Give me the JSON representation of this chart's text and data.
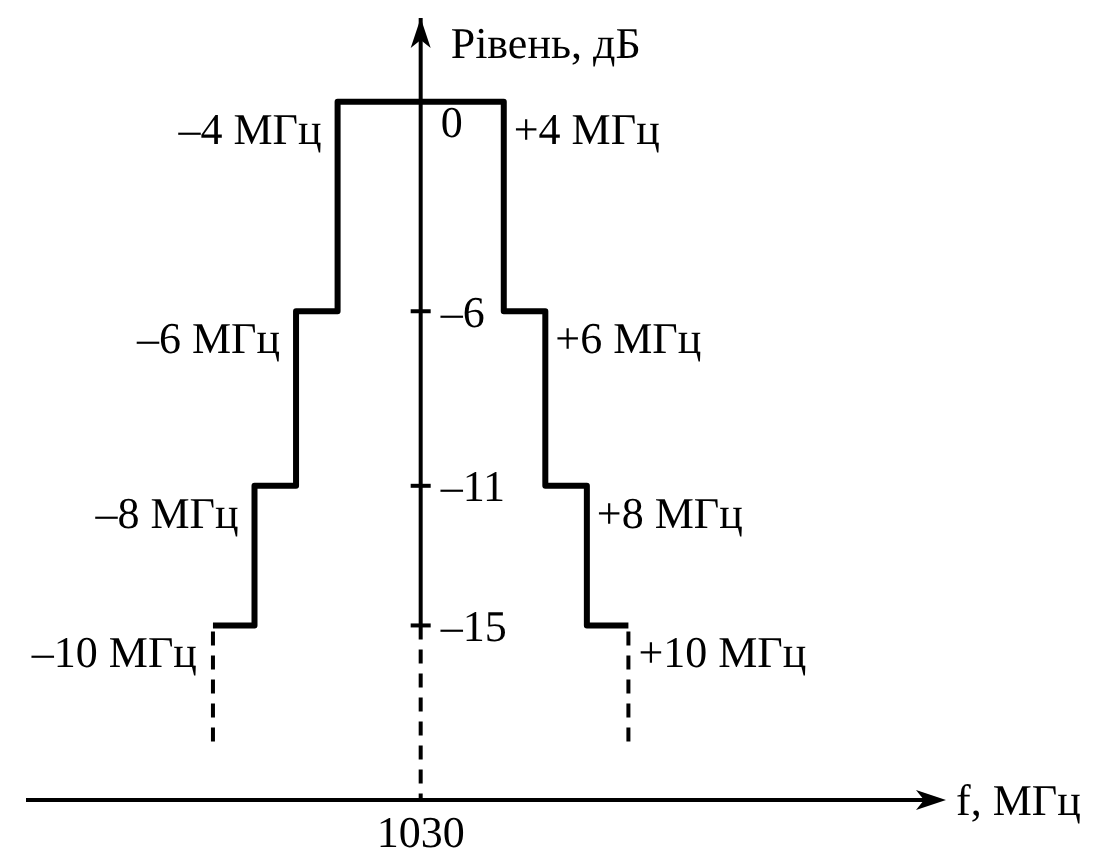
{
  "chart_data": {
    "type": "step",
    "xlabel": "f, МГц",
    "ylabel": "Рівень, дБ",
    "categories": [
      null,
      null,
      null,
      null,
      null,
      null,
      null,
      null,
      null,
      "1030",
      null,
      null,
      null,
      null,
      null,
      null,
      null,
      null,
      null,
      null,
      null,
      null
    ],
    "values": [
      null,
      null,
      null,
      null,
      -15,
      -11,
      -6,
      0,
      0,
      0,
      0,
      -6,
      -11,
      -15,
      -15,
      null,
      null,
      null,
      null,
      null,
      null,
      null
    ],
    "color": "#000000",
    "annotations": [
      "–10 МГц",
      "–8 МГц",
      "–6 МГц",
      "–4 МГц",
      "+4 МГц",
      "+6 МГц",
      "+8 МГц",
      "+10 МГц"
    ],
    "ylim": [
      -20,
      2.4
    ],
    "yticks": [
      0,
      {
        "value": -6,
        "label": "–6"
      },
      {
        "value": -11,
        "label": "–11"
      },
      {
        "value": -15,
        "label": "–15"
      }
    ],
    "line_style": "solid",
    "marker": "none"
  }
}
